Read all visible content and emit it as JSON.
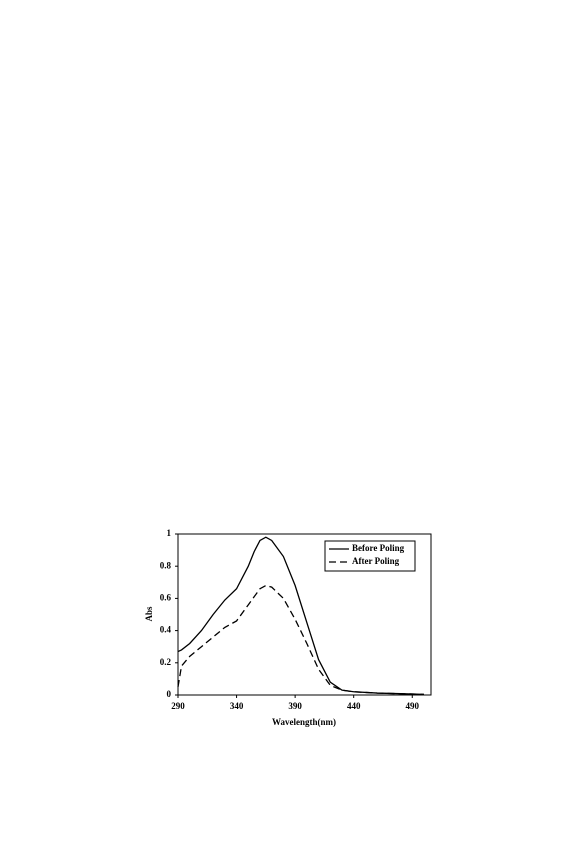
{
  "chart_data": {
    "type": "line",
    "x_label": "Wavelength(nm)",
    "y_label": "Abs",
    "x": [
      290,
      293,
      300,
      310,
      320,
      330,
      340,
      350,
      355,
      360,
      365,
      370,
      380,
      390,
      400,
      410,
      420,
      430,
      440,
      460,
      480,
      500
    ],
    "series": [
      {
        "name": "Before Poling",
        "color": "#000000",
        "style": "solid",
        "values": [
          0.27,
          0.28,
          0.32,
          0.4,
          0.5,
          0.59,
          0.66,
          0.8,
          0.89,
          0.96,
          0.98,
          0.96,
          0.86,
          0.68,
          0.45,
          0.22,
          0.08,
          0.03,
          0.02,
          0.012,
          0.008,
          0.004
        ]
      },
      {
        "name": "After Poling",
        "color": "#000000",
        "style": "dashed",
        "values": [
          0.05,
          0.18,
          0.24,
          0.3,
          0.36,
          0.42,
          0.46,
          0.56,
          0.61,
          0.66,
          0.68,
          0.67,
          0.6,
          0.47,
          0.32,
          0.16,
          0.06,
          0.03,
          0.02,
          0.012,
          0.008,
          0.004
        ]
      }
    ],
    "xlim": [
      290,
      506
    ],
    "xticks": [
      290,
      340,
      390,
      440,
      490
    ],
    "ylim": [
      0,
      1
    ],
    "yticks": [
      0,
      0.2,
      0.4,
      0.6,
      0.8,
      1
    ],
    "grid": false,
    "legend": "upper right"
  }
}
